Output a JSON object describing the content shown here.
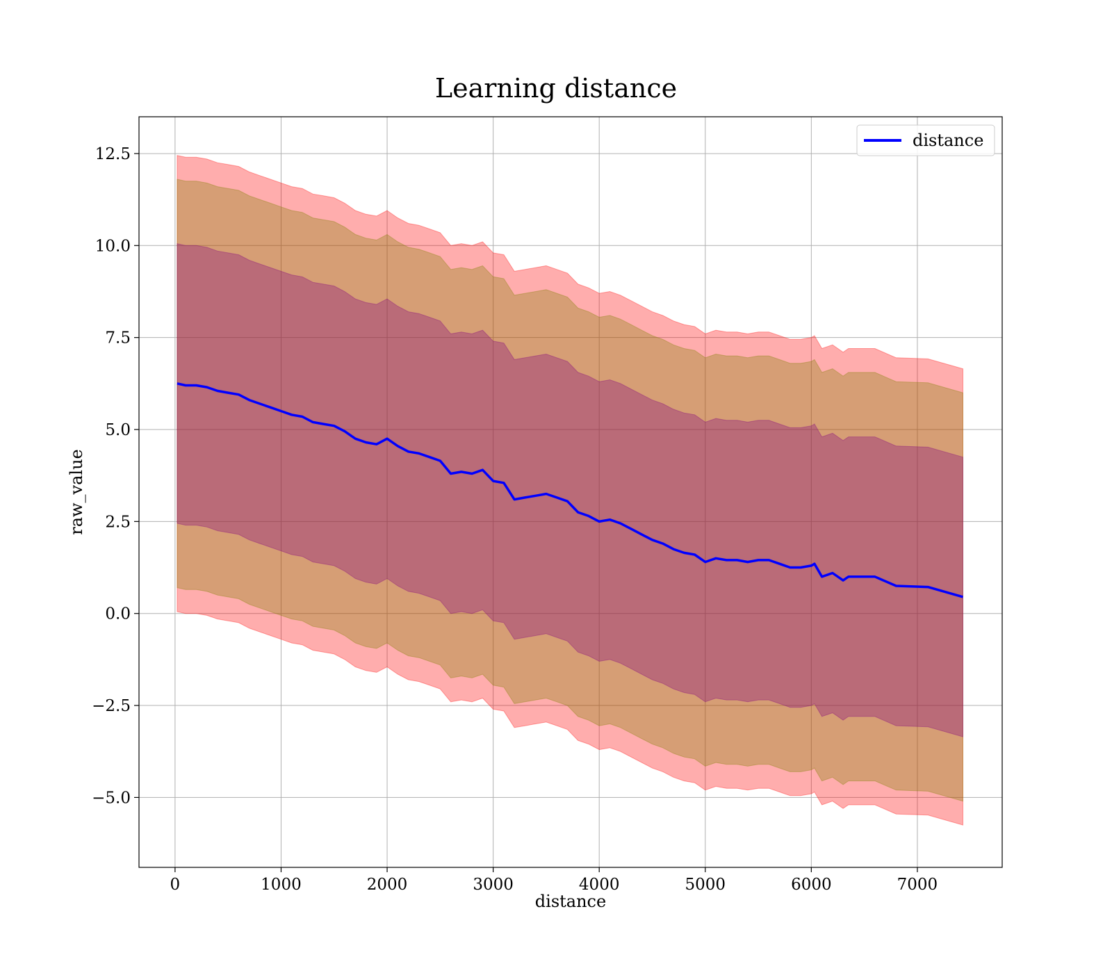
{
  "chart_data": {
    "type": "line",
    "title": "Learning distance",
    "xlabel": "distance",
    "ylabel": "raw_value",
    "xlim": [
      -340,
      7800
    ],
    "ylim": [
      -6.9,
      13.5
    ],
    "xticks": [
      0,
      1000,
      2000,
      3000,
      4000,
      5000,
      6000,
      7000
    ],
    "xtick_labels": [
      "0",
      "1000",
      "2000",
      "3000",
      "4000",
      "5000",
      "6000",
      "7000"
    ],
    "yticks": [
      -5.0,
      -2.5,
      0.0,
      2.5,
      5.0,
      7.5,
      10.0,
      12.5
    ],
    "ytick_labels": [
      "−5.0",
      "−2.5",
      "0.0",
      "2.5",
      "5.0",
      "7.5",
      "10.0",
      "12.5"
    ],
    "grid": true,
    "legend_position": "top-right",
    "colors": {
      "line": "#0000ff",
      "band_outer": "#ff0000",
      "band_middle": "#808000",
      "band_inner": "#800080",
      "grid": "#b0b0b0"
    },
    "series": [
      {
        "name": "distance",
        "x": [
          20,
          100,
          200,
          300,
          400,
          500,
          600,
          700,
          800,
          900,
          1000,
          1100,
          1200,
          1300,
          1400,
          1500,
          1600,
          1700,
          1800,
          1900,
          2000,
          2100,
          2200,
          2300,
          2400,
          2500,
          2600,
          2700,
          2800,
          2900,
          3000,
          3100,
          3200,
          3300,
          3400,
          3500,
          3600,
          3700,
          3800,
          3900,
          4000,
          4100,
          4200,
          4300,
          4400,
          4500,
          4600,
          4700,
          4800,
          4900,
          5000,
          5100,
          5200,
          5300,
          5400,
          5500,
          5600,
          5700,
          5800,
          5900,
          6000,
          6030,
          6100,
          6200,
          6300,
          6350,
          6450,
          6600,
          6800,
          7100,
          7430
        ],
        "y": [
          6.25,
          6.2,
          6.2,
          6.15,
          6.05,
          6.0,
          5.95,
          5.8,
          5.7,
          5.6,
          5.5,
          5.4,
          5.35,
          5.2,
          5.15,
          5.1,
          4.95,
          4.75,
          4.65,
          4.6,
          4.75,
          4.55,
          4.4,
          4.35,
          4.25,
          4.15,
          3.8,
          3.85,
          3.8,
          3.9,
          3.6,
          3.55,
          3.1,
          3.15,
          3.2,
          3.25,
          3.15,
          3.05,
          2.75,
          2.65,
          2.5,
          2.55,
          2.45,
          2.3,
          2.15,
          2.0,
          1.9,
          1.75,
          1.65,
          1.6,
          1.4,
          1.5,
          1.45,
          1.45,
          1.4,
          1.45,
          1.45,
          1.35,
          1.25,
          1.25,
          1.3,
          1.35,
          1.0,
          1.1,
          0.9,
          1.0,
          1.0,
          1.0,
          0.75,
          0.72,
          0.45
        ]
      }
    ],
    "bands": [
      {
        "fill": "band_outer",
        "sigma": 6.2
      },
      {
        "fill": "band_middle",
        "sigma": 5.55
      },
      {
        "fill": "band_inner",
        "sigma": 3.8
      }
    ]
  }
}
